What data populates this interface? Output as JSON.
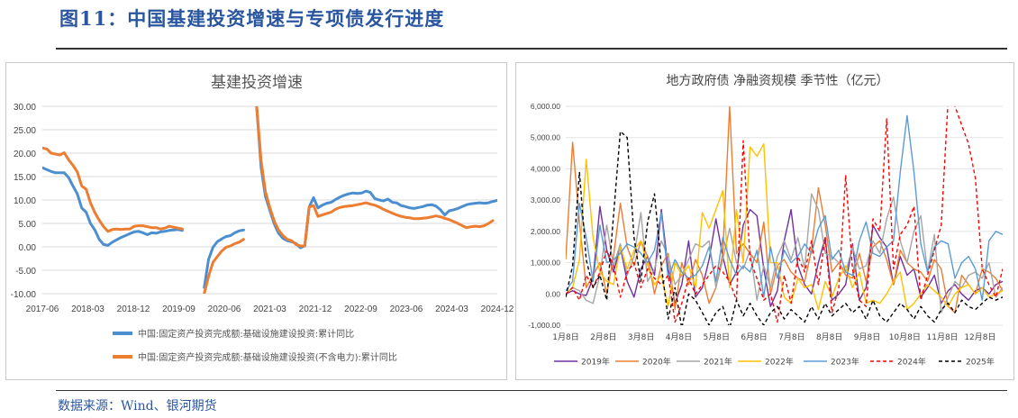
{
  "figure": {
    "title": "图11：中国基建投资增速与专项债发行进度",
    "source": "数据来源：Wind、银河期货"
  },
  "chart_data": [
    {
      "type": "line",
      "title": "基建投资增速",
      "ylim": [
        -10,
        30
      ],
      "yticks": [
        "30.00",
        "25.00",
        "20.00",
        "15.00",
        "10.00",
        "5.00",
        "0.00",
        "-5.00",
        "-10.00"
      ],
      "ytick_values": [
        30,
        25,
        20,
        15,
        10,
        5,
        0,
        -5,
        -10
      ],
      "xticks": [
        "2017-06",
        "2018-03",
        "2018-12",
        "2019-09",
        "2020-06",
        "2021-03",
        "2021-12",
        "2022-09",
        "2023-06",
        "2024-03",
        "2024-12"
      ],
      "grid": "horizontal",
      "legend_position": "bottom",
      "series": [
        {
          "name": "中国:固定资产投资完成额:基础设施建设投资:累计同比",
          "color": "#4b8fd1",
          "values": [
            16.9,
            16.5,
            16.1,
            15.8,
            15.8,
            15.8,
            14.8,
            13.0,
            11.3,
            8.3,
            7.4,
            5.0,
            3.6,
            1.6,
            0.5,
            0.3,
            1.0,
            1.5,
            2.0,
            2.4,
            2.8,
            3.2,
            3.3,
            3.0,
            2.6,
            3.0,
            2.9,
            3.2,
            3.3,
            3.5,
            3.6,
            3.7,
            3.5,
            null,
            null,
            null,
            null,
            -8.7,
            -2.7,
            -0.1,
            1.1,
            1.7,
            2.2,
            2.4,
            3.0,
            3.4,
            3.6,
            null,
            null,
            30.0,
            17.0,
            10.8,
            7.8,
            4.9,
            2.9,
            1.8,
            1.3,
            1.1,
            0.7,
            -0.2,
            0.2,
            8.5,
            10.5,
            8.3,
            8.9,
            9.3,
            9.5,
            10.1,
            10.6,
            11.0,
            11.3,
            11.5,
            11.4,
            11.5,
            11.9,
            11.6,
            10.3,
            10.0,
            9.8,
            10.2,
            9.5,
            9.4,
            8.8,
            8.6,
            8.3,
            8.2,
            8.4,
            8.6,
            8.9,
            9.0,
            8.7,
            7.9,
            6.8,
            7.7,
            7.9,
            8.2,
            8.6,
            9.0,
            9.2,
            9.3,
            9.4,
            9.3,
            9.4,
            9.7,
            9.9
          ]
        },
        {
          "name": "中国:固定资产投资完成额:基础设施建设投资(不含电力):累计同比",
          "color": "#ed7d31",
          "values": [
            21.1,
            20.9,
            20.0,
            19.8,
            19.6,
            20.1,
            18.6,
            17.4,
            16.0,
            13.0,
            12.3,
            9.4,
            7.3,
            5.7,
            4.3,
            3.3,
            3.7,
            3.8,
            3.7,
            3.8,
            3.8,
            4.4,
            4.5,
            4.5,
            4.3,
            4.1,
            4.1,
            3.8,
            4.0,
            4.4,
            4.2,
            4.0,
            3.8,
            null,
            null,
            null,
            null,
            -10.0,
            -6.3,
            -3.3,
            -2.1,
            -0.9,
            -0.1,
            0.2,
            0.7,
            1.0,
            1.6,
            null,
            null,
            30.0,
            18.4,
            11.8,
            8.4,
            5.5,
            3.6,
            2.4,
            1.6,
            1.3,
            0.5,
            0.2,
            0.2,
            8.5,
            8.8,
            6.5,
            6.8,
            7.1,
            7.4,
            8.0,
            8.4,
            8.6,
            8.7,
            8.8,
            9.0,
            9.2,
            9.4,
            9.1,
            8.9,
            8.5,
            8.0,
            7.6,
            7.2,
            6.8,
            6.5,
            6.3,
            6.2,
            6.0,
            6.0,
            6.1,
            6.2,
            6.4,
            6.6,
            6.4,
            6.1,
            5.8,
            5.4,
            5.0,
            4.5,
            4.1,
            4.3,
            4.4,
            4.3,
            4.5,
            5.0,
            5.6
          ]
        }
      ]
    },
    {
      "type": "line",
      "title": "地方政府债 净融资规模 季节性（亿元）",
      "ylim": [
        -1000,
        6000
      ],
      "yticks": [
        "6,000.00",
        "5,000.00",
        "4,000.00",
        "3,000.00",
        "2,000.00",
        "1,000.00",
        "0.00",
        "-1,000.00"
      ],
      "ytick_values": [
        6000,
        5000,
        4000,
        3000,
        2000,
        1000,
        0,
        -1000
      ],
      "xticks": [
        "1月8日",
        "2月8日",
        "3月8日",
        "4月8日",
        "5月8日",
        "6月8日",
        "7月8日",
        "8月8日",
        "9月8日",
        "10月8日",
        "11月8日",
        "12月8日"
      ],
      "grid": "horizontal",
      "legend_position": "bottom",
      "series": [
        {
          "name": "2019年",
          "color": "#7030a0",
          "dash": "",
          "values": [
            0,
            100,
            0,
            -50,
            500,
            2800,
            1400,
            700,
            1500,
            400,
            -100,
            800,
            1200,
            600,
            2700,
            800,
            -300,
            300,
            1700,
            -100,
            200,
            1100,
            2400,
            1200,
            300,
            700,
            2200,
            2700,
            2500,
            800,
            -400,
            100,
            1700,
            2700,
            900,
            300,
            0,
            1000,
            1800,
            -200,
            0,
            300,
            1600,
            -200,
            200,
            2200,
            1800,
            1500,
            300,
            1200,
            600,
            800,
            -100,
            200,
            600,
            -300,
            100,
            300,
            0,
            -200,
            100,
            200,
            0,
            300,
            400
          ]
        },
        {
          "name": "2020年",
          "color": "#ed7d31",
          "dash": "",
          "values": [
            1100,
            4850,
            2300,
            200,
            600,
            1000,
            0,
            1200,
            2900,
            1500,
            900,
            1700,
            1200,
            0,
            900,
            1300,
            -500,
            1000,
            300,
            1100,
            600,
            -300,
            200,
            1300,
            6000,
            1300,
            1600,
            1300,
            1000,
            2300,
            0,
            900,
            1100,
            700,
            500,
            400,
            1400,
            3400,
            2200,
            700,
            1000,
            600,
            500,
            1300,
            400,
            1500,
            1700,
            1100,
            300,
            1400,
            1000,
            800,
            700,
            400,
            1100,
            800,
            -400,
            -600,
            600,
            300,
            0,
            800,
            700,
            500,
            100
          ]
        },
        {
          "name": "2021年",
          "color": "#a5a5a5",
          "dash": "",
          "values": [
            0,
            200,
            100,
            -200,
            -300,
            600,
            2200,
            900,
            1600,
            600,
            1200,
            2600,
            400,
            800,
            1700,
            1200,
            300,
            600,
            1100,
            1600,
            1500,
            1700,
            200,
            1100,
            2100,
            1000,
            800,
            1400,
            -200,
            900,
            200,
            1200,
            1700,
            1100,
            1800,
            800,
            3200,
            2700,
            1300,
            1200,
            1000,
            700,
            1500,
            800,
            900,
            1700,
            1300,
            2400,
            3100,
            1700,
            1000,
            2000,
            2500,
            700,
            1900,
            -600,
            -100,
            400,
            200,
            600,
            700,
            500,
            1000,
            -100,
            200
          ]
        },
        {
          "name": "2022年",
          "color": "#ffc000",
          "dash": "",
          "values": [
            0,
            200,
            1100,
            4300,
            1800,
            700,
            400,
            300,
            1500,
            800,
            1400,
            1700,
            900,
            300,
            600,
            -400,
            1000,
            600,
            900,
            200,
            2600,
            2100,
            2700,
            3300,
            200,
            2700,
            1000,
            4700,
            4400,
            4800,
            1000,
            1000,
            -100,
            -300,
            500,
            200,
            300,
            -500,
            400,
            -100,
            500,
            900,
            200,
            700,
            -300,
            -200,
            -300,
            0,
            400,
            700,
            -500,
            -300,
            0,
            300,
            100,
            -100,
            -400,
            0,
            200,
            300,
            0,
            200,
            -100,
            0,
            100
          ]
        },
        {
          "name": "2023年",
          "color": "#5b9bd5",
          "dash": "",
          "values": [
            100,
            400,
            2900,
            1800,
            400,
            2200,
            1000,
            1100,
            1300,
            1600,
            1500,
            1300,
            1000,
            1400,
            2600,
            500,
            1100,
            700,
            500,
            600,
            900,
            1500,
            400,
            1800,
            1100,
            600,
            900,
            700,
            1400,
            -100,
            1500,
            500,
            1400,
            1000,
            1200,
            1600,
            1300,
            2100,
            2500,
            1100,
            1400,
            700,
            600,
            1700,
            2300,
            1300,
            1200,
            1500,
            1700,
            3900,
            5700,
            3900,
            1600,
            700,
            1500,
            1700,
            1600,
            500,
            1000,
            1200,
            800,
            -200,
            1700,
            2000,
            1900
          ]
        },
        {
          "name": "2024年",
          "color": "#ff0000",
          "dash": "4,3",
          "values": [
            0,
            200,
            -200,
            600,
            200,
            700,
            1400,
            900,
            -100,
            700,
            1000,
            200,
            800,
            500,
            300,
            600,
            -900,
            -300,
            500,
            0,
            300,
            600,
            900,
            700,
            400,
            -200,
            4900,
            1100,
            500,
            -200,
            0,
            -900,
            600,
            -300,
            1200,
            700,
            1700,
            300,
            1800,
            -600,
            200,
            3800,
            800,
            -200,
            -400,
            2400,
            2000,
            5600,
            800,
            1900,
            2200,
            2800,
            -200,
            600,
            1400,
            2200,
            6200,
            6000,
            5400,
            4800,
            3700,
            800,
            300,
            -100,
            800
          ]
        },
        {
          "name": "2025年",
          "color": "#000000",
          "dash": "4,3",
          "values": [
            -100,
            900,
            3900,
            1100,
            200,
            600,
            -200,
            2500,
            5200,
            5000,
            1800,
            400,
            2300,
            3200,
            900,
            -800,
            200,
            -1100,
            0,
            -200,
            -600,
            -1000,
            -600,
            -400,
            -1100,
            -200,
            -700,
            -300,
            -700,
            -1000,
            -600,
            -400,
            -800,
            -500,
            -700,
            -900,
            -400,
            -800,
            -300,
            -700,
            -500,
            -300,
            -600,
            -400,
            -800,
            -200,
            -700,
            -900,
            -600,
            -300,
            -500,
            -800,
            -400,
            -700,
            -900,
            -500,
            -300,
            -600,
            -200,
            -400,
            -500,
            -300,
            -100,
            -200,
            -100
          ]
        }
      ]
    }
  ]
}
